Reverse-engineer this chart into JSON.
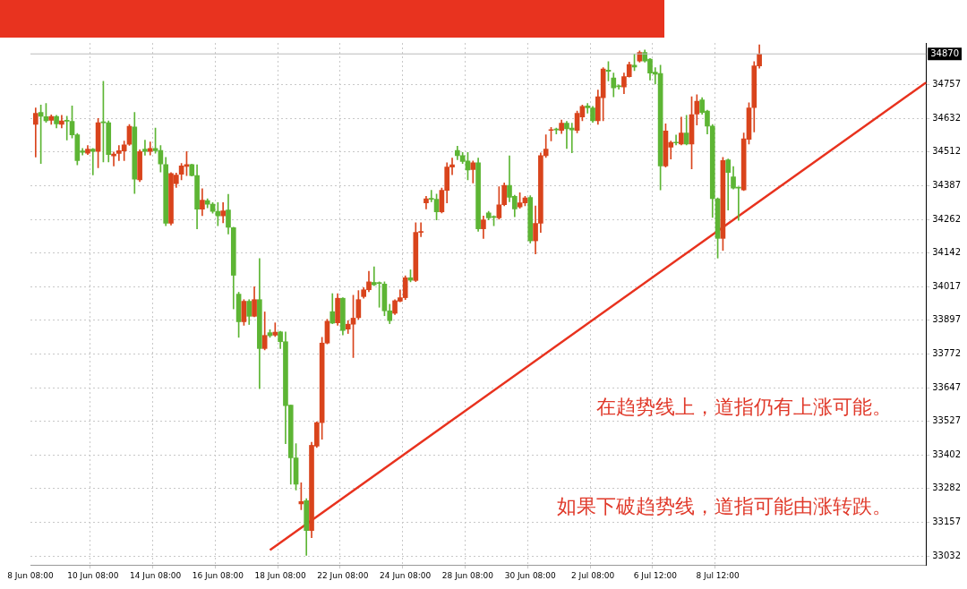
{
  "chart_data": {
    "type": "candlestick",
    "categories": [
      "8 Jun 08:00",
      null,
      null,
      null,
      null,
      null,
      null,
      null,
      null,
      null,
      null,
      null,
      "10 Jun 08:00",
      null,
      null,
      null,
      null,
      null,
      null,
      null,
      null,
      null,
      null,
      null,
      "14 Jun 08:00",
      null,
      null,
      null,
      null,
      null,
      null,
      null,
      null,
      null,
      null,
      null,
      "16 Jun 08:00",
      null,
      null,
      null,
      null,
      null,
      null,
      null,
      null,
      null,
      null,
      null,
      "18 Jun 08:00",
      null,
      null,
      null,
      null,
      null,
      null,
      null,
      null,
      null,
      null,
      null,
      "22 Jun 08:00",
      null,
      null,
      null,
      null,
      null,
      null,
      null,
      null,
      null,
      null,
      null,
      "24 Jun 08:00",
      null,
      null,
      null,
      null,
      null,
      null,
      null,
      null,
      null,
      null,
      null,
      "28 Jun 08:00",
      null,
      null,
      null,
      null,
      null,
      null,
      null,
      null,
      null,
      null,
      null,
      "30 Jun 08:00",
      null,
      null,
      null,
      null,
      null,
      null,
      null,
      null,
      null,
      null,
      null,
      "2 Jul 08:00",
      null,
      null,
      null,
      null,
      null,
      null,
      null,
      null,
      null,
      null,
      null,
      "6 Jul 12:00",
      null,
      null,
      null,
      null,
      null,
      null,
      null,
      null,
      null,
      null,
      null,
      "8 Jul 12:00",
      null,
      null,
      null,
      null,
      null,
      null,
      null,
      null,
      null,
      null,
      null,
      null,
      null,
      null,
      null,
      null,
      null,
      null,
      null,
      null,
      null,
      null,
      null,
      null,
      null,
      null,
      null,
      null,
      null,
      null,
      null,
      null,
      null,
      null,
      null,
      null,
      null,
      null,
      null,
      null
    ],
    "ohlc": [
      null,
      [
        34612,
        34672,
        34493,
        34653
      ],
      [
        34656,
        34683,
        34469,
        34642
      ],
      [
        34640,
        34689,
        34620,
        34625
      ],
      [
        34627,
        34647,
        34612,
        34641
      ],
      [
        34641,
        34645,
        34599,
        34614
      ],
      [
        34612,
        34645,
        34599,
        34625
      ],
      [
        34625,
        34642,
        34555,
        34624
      ],
      [
        34623,
        34680,
        34562,
        34574
      ],
      [
        34574,
        34579,
        34464,
        34480
      ],
      [
        34515,
        34524,
        34500,
        34510
      ],
      [
        34507,
        34535,
        34502,
        34522
      ],
      [
        34522,
        34524,
        34427,
        34513
      ],
      [
        34513,
        34634,
        34453,
        34618
      ],
      [
        34618,
        34770,
        34475,
        34618
      ],
      [
        34618,
        34625,
        34475,
        34502
      ],
      [
        34497,
        34511,
        34460,
        34504
      ],
      [
        34506,
        34535,
        34480,
        34516
      ],
      [
        34515,
        34551,
        34480,
        34537
      ],
      [
        34539,
        34612,
        34535,
        34605
      ],
      [
        34603,
        34656,
        34359,
        34412
      ],
      [
        34409,
        34519,
        34403,
        34513
      ],
      [
        34522,
        34554,
        34499,
        34513
      ],
      [
        34513,
        34548,
        34500,
        34524
      ],
      [
        34524,
        34599,
        34507,
        34516
      ],
      [
        34517,
        34535,
        34438,
        34467
      ],
      [
        34465,
        34491,
        34241,
        34250
      ],
      [
        34250,
        34436,
        34244,
        34432
      ],
      [
        34395,
        34434,
        34381,
        34427
      ],
      [
        34430,
        34469,
        34409,
        34460
      ],
      [
        34458,
        34513,
        34425,
        34465
      ],
      [
        34465,
        34467,
        34423,
        34425
      ],
      [
        34425,
        34464,
        34230,
        34302
      ],
      [
        34302,
        34377,
        34278,
        34335
      ],
      [
        34333,
        34340,
        34307,
        34320
      ],
      [
        34320,
        34326,
        34287,
        34294
      ],
      [
        34294,
        34326,
        34241,
        34277
      ],
      [
        34277,
        34326,
        34252,
        34296
      ],
      [
        34299,
        34356,
        34211,
        34236
      ],
      [
        34234,
        34236,
        33937,
        34060
      ],
      [
        33991,
        33998,
        33833,
        33890
      ],
      [
        33890,
        33971,
        33877,
        33965
      ],
      [
        33965,
        33971,
        33880,
        33910
      ],
      [
        33910,
        34018,
        33908,
        33971
      ],
      [
        33971,
        34121,
        33645,
        33792
      ],
      [
        33792,
        33926,
        33787,
        33840
      ],
      [
        33850,
        33861,
        33833,
        33839
      ],
      [
        33841,
        33886,
        33836,
        33852
      ],
      [
        33853,
        33855,
        33792,
        33817
      ],
      [
        33817,
        33853,
        33444,
        33583
      ],
      [
        33585,
        33585,
        33296,
        33392
      ],
      [
        33392,
        33444,
        33274,
        33296
      ],
      [
        33224,
        33301,
        33202,
        33232
      ],
      [
        33235,
        33243,
        33035,
        33126
      ],
      [
        33126,
        33449,
        33100,
        33438
      ],
      [
        33435,
        33524,
        33430,
        33521
      ],
      [
        33521,
        33833,
        33460,
        33812
      ],
      [
        33812,
        33899,
        33809,
        33892
      ],
      [
        33927,
        33993,
        33883,
        33885
      ],
      [
        33886,
        33993,
        33877,
        33976
      ],
      [
        33976,
        33978,
        33842,
        33858
      ],
      [
        33863,
        33894,
        33847,
        33881
      ],
      [
        33881,
        33987,
        33759,
        33903
      ],
      [
        33905,
        34004,
        33899,
        33971
      ],
      [
        33982,
        34015,
        33976,
        34007
      ],
      [
        34007,
        34075,
        34000,
        34036
      ],
      [
        34034,
        34091,
        34022,
        34025
      ],
      [
        34031,
        34036,
        33943,
        34030
      ],
      [
        34028,
        34036,
        33912,
        33930
      ],
      [
        33930,
        33954,
        33883,
        33894
      ],
      [
        33921,
        33971,
        33916,
        33967
      ],
      [
        33965,
        34007,
        33963,
        33978
      ],
      [
        33978,
        34058,
        33971,
        34051
      ],
      [
        34051,
        34080,
        34036,
        34042
      ],
      [
        34041,
        34252,
        34037,
        34217
      ],
      [
        34217,
        34252,
        34201,
        34218
      ],
      [
        34325,
        34349,
        34303,
        34340
      ],
      [
        34338,
        34371,
        34329,
        34338
      ],
      [
        34338,
        34357,
        34263,
        34292
      ],
      [
        34292,
        34379,
        34288,
        34371
      ],
      [
        34371,
        34472,
        34325,
        34456
      ],
      [
        34456,
        34489,
        34428,
        34464
      ],
      [
        34517,
        34532,
        34483,
        34498
      ],
      [
        34498,
        34509,
        34469,
        34476
      ],
      [
        34478,
        34509,
        34409,
        34445
      ],
      [
        34447,
        34478,
        34398,
        34472
      ],
      [
        34472,
        34489,
        34221,
        34230
      ],
      [
        34230,
        34277,
        34195,
        34263
      ],
      [
        34288,
        34294,
        34263,
        34270
      ],
      [
        34272,
        34278,
        34241,
        34272
      ],
      [
        34270,
        34384,
        34265,
        34318
      ],
      [
        34318,
        34398,
        34314,
        34389
      ],
      [
        34389,
        34497,
        34329,
        34345
      ],
      [
        34349,
        34353,
        34274,
        34303
      ],
      [
        34310,
        34362,
        34305,
        34325
      ],
      [
        34325,
        34349,
        34314,
        34343
      ],
      [
        34345,
        34351,
        34178,
        34186
      ],
      [
        34186,
        34314,
        34138,
        34250
      ],
      [
        34250,
        34508,
        34217,
        34498
      ],
      [
        34498,
        34574,
        34491,
        34522
      ],
      [
        34590,
        34601,
        34552,
        34591
      ],
      [
        34592,
        34599,
        34577,
        34592
      ],
      [
        34590,
        34628,
        34579,
        34617
      ],
      [
        34617,
        34623,
        34524,
        34596
      ],
      [
        34599,
        34617,
        34508,
        34592
      ],
      [
        34590,
        34661,
        34581,
        34653
      ],
      [
        34639,
        34683,
        34625,
        34678
      ],
      [
        34680,
        34689,
        34653,
        34673
      ],
      [
        34672,
        34678,
        34620,
        34625
      ],
      [
        34625,
        34738,
        34612,
        34713
      ],
      [
        34710,
        34820,
        34625,
        34815
      ],
      [
        34811,
        34842,
        34771,
        34806
      ],
      [
        34782,
        34800,
        34713,
        34746
      ],
      [
        34750,
        34757,
        34741,
        34750
      ],
      [
        34749,
        34800,
        34724,
        34787
      ],
      [
        34787,
        34840,
        34785,
        34831
      ],
      [
        34829,
        34870,
        34809,
        34822
      ],
      [
        34844,
        34881,
        34840,
        34875
      ],
      [
        34875,
        34884,
        34840,
        34844
      ],
      [
        34851,
        34853,
        34774,
        34800
      ],
      [
        34803,
        34820,
        34760,
        34796
      ],
      [
        34798,
        34829,
        34372,
        34460
      ],
      [
        34460,
        34614,
        34456,
        34588
      ],
      [
        34529,
        34551,
        34485,
        34546
      ],
      [
        34544,
        34573,
        34537,
        34544
      ],
      [
        34540,
        34639,
        34537,
        34581
      ],
      [
        34581,
        34645,
        34537,
        34540
      ],
      [
        34540,
        34713,
        34449,
        34648
      ],
      [
        34650,
        34721,
        34610,
        34697
      ],
      [
        34702,
        34710,
        34649,
        34656
      ],
      [
        34661,
        34664,
        34577,
        34606
      ],
      [
        34606,
        34612,
        34272,
        34340
      ],
      [
        34340,
        34343,
        34123,
        34195
      ],
      [
        34195,
        34491,
        34151,
        34480
      ],
      [
        34482,
        34486,
        34299,
        34436
      ],
      [
        34420,
        34458,
        34376,
        34379
      ],
      [
        34379,
        34383,
        34261,
        34379
      ],
      [
        34372,
        34581,
        34370,
        34559
      ],
      [
        34557,
        34691,
        34540,
        34672
      ],
      [
        34674,
        34842,
        34584,
        34826
      ],
      [
        34826,
        34903,
        34818,
        34870
      ],
      null,
      null,
      null,
      null,
      null,
      null,
      null,
      null,
      null,
      null,
      null,
      null,
      null,
      null,
      null,
      null,
      null,
      null,
      null,
      null,
      null,
      null,
      null,
      null,
      null,
      null,
      null,
      null,
      null,
      null,
      null,
      null
    ],
    "colors": [
      null,
      "#d9441c",
      "#5db534",
      "#5db534",
      "#d9441c",
      "#5db534",
      "#d9441c",
      "#5db534",
      "#5db534",
      "#5db534",
      "#5db534",
      "#d9441c",
      "#5db534",
      "#d9441c",
      "#5db534",
      "#5db534",
      "#d9441c",
      "#d9441c",
      "#d9441c",
      "#d9441c",
      "#5db534",
      "#d9441c",
      "#5db534",
      "#d9441c",
      "#5db534",
      "#5db534",
      "#5db534",
      "#d9441c",
      "#d9441c",
      "#d9441c",
      "#d9441c",
      "#5db534",
      "#5db534",
      "#d9441c",
      "#5db534",
      "#5db534",
      "#5db534",
      "#d9441c",
      "#5db534",
      "#5db534",
      "#5db534",
      "#d9441c",
      "#5db534",
      "#d9441c",
      "#5db534",
      "#d9441c",
      "#5db534",
      "#d9441c",
      "#5db534",
      "#5db534",
      "#5db534",
      "#5db534",
      "#d9441c",
      "#5db534",
      "#d9441c",
      "#d9441c",
      "#d9441c",
      "#d9441c",
      "#5db534",
      "#d9441c",
      "#5db534",
      "#d9441c",
      "#d9441c",
      "#d9441c",
      "#d9441c",
      "#d9441c",
      "#5db534",
      "#5db534",
      "#5db534",
      "#5db534",
      "#d9441c",
      "#d9441c",
      "#d9441c",
      "#5db534",
      "#d9441c",
      "#d9441c",
      "#d9441c",
      "#5db534",
      "#5db534",
      "#d9441c",
      "#d9441c",
      "#d9441c",
      "#5db534",
      "#5db534",
      "#5db534",
      "#d9441c",
      "#5db534",
      "#d9441c",
      "#5db534",
      "#5db534",
      "#d9441c",
      "#d9441c",
      "#5db534",
      "#5db534",
      "#d9441c",
      "#d9441c",
      "#5db534",
      "#d9441c",
      "#d9441c",
      "#d9441c",
      "#d9441c",
      "#5db534",
      "#d9441c",
      "#5db534",
      "#5db534",
      "#d9441c",
      "#d9441c",
      "#5db534",
      "#5db534",
      "#d9441c",
      "#d9441c",
      "#5db534",
      "#5db534",
      "#5db534",
      "#d9441c",
      "#d9441c",
      "#5db534",
      "#d9441c",
      "#5db534",
      "#5db534",
      "#5db534",
      "#5db534",
      "#d9441c",
      "#d9441c",
      "#5db534",
      "#d9441c",
      "#5db534",
      "#d9441c",
      "#d9441c",
      "#5db534",
      "#5db534",
      "#5db534",
      "#5db534",
      "#d9441c",
      "#5db534",
      "#5db534",
      "#5db534",
      "#d9441c",
      "#d9441c",
      "#d9441c",
      "#d9441c",
      null,
      null,
      null,
      null,
      null,
      null,
      null,
      null,
      null,
      null,
      null,
      null,
      null,
      null,
      null,
      null,
      null,
      null,
      null,
      null,
      null,
      null,
      null,
      null,
      null,
      null,
      null,
      null,
      null,
      null,
      null,
      null
    ],
    "series": [
      {
        "type": "line",
        "color": "#e8321e",
        "values": [
          null,
          null,
          null,
          null,
          null,
          null,
          null,
          null,
          null,
          null,
          null,
          null,
          null,
          null,
          null,
          null,
          null,
          null,
          null,
          null,
          null,
          null,
          null,
          null,
          null,
          null,
          null,
          null,
          null,
          null,
          null,
          null,
          null,
          null,
          null,
          null,
          null,
          null,
          null,
          null,
          null,
          null,
          null,
          null,
          null,
          null,
          33055,
          null,
          null,
          null,
          null,
          null,
          null,
          null,
          null,
          null,
          null,
          null,
          null,
          null,
          null,
          null,
          null,
          null,
          null,
          null,
          null,
          null,
          null,
          null,
          null,
          null,
          null,
          null,
          null,
          null,
          null,
          null,
          null,
          null,
          null,
          null,
          null,
          null,
          null,
          null,
          null,
          null,
          null,
          null,
          null,
          null,
          null,
          null,
          null,
          null,
          null,
          null,
          null,
          null,
          null,
          null,
          null,
          null,
          null,
          null,
          null,
          null,
          null,
          null,
          null,
          null,
          null,
          null,
          null,
          null,
          null,
          null,
          null,
          null,
          null,
          null,
          null,
          null,
          null,
          null,
          null,
          null,
          null,
          null,
          null,
          null,
          null,
          null,
          null,
          null,
          null,
          null,
          null,
          null,
          null,
          null,
          null,
          null,
          null,
          null,
          null,
          null,
          null,
          null,
          null,
          null,
          null,
          null,
          null,
          null,
          null,
          null,
          null,
          null,
          null,
          null,
          null,
          null,
          null,
          null,
          null,
          null,
          null,
          null,
          null,
          null,
          34765
        ]
      }
    ],
    "ylim": [
      33000,
      34910
    ],
    "yticks": [
      33032,
      33157,
      33282,
      33402,
      33527,
      33647,
      33772,
      33897,
      34017,
      34142,
      34262,
      34387,
      34512,
      34632,
      34757
    ],
    "grid": true,
    "legend": false,
    "ref_lines": [
      {
        "axis": "y",
        "value": 34870,
        "label": "34870",
        "color": "#bbbbbb"
      }
    ],
    "annotations": [
      "在趋势线上，道指仍有上涨可能。",
      "如果下破趋势线，道指可能由涨转跌。"
    ]
  }
}
